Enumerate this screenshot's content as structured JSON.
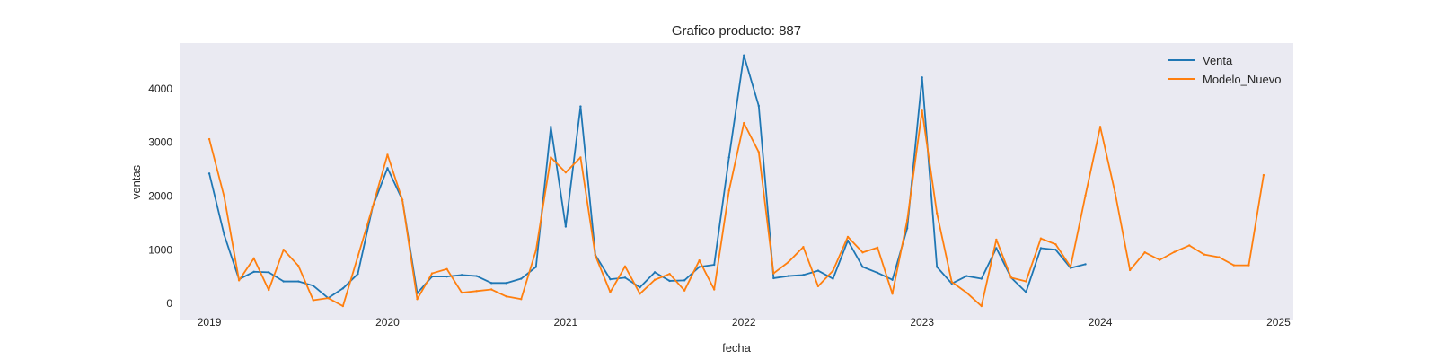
{
  "chart_data": {
    "type": "line",
    "title": "Grafico producto: 887",
    "xlabel": "fecha",
    "ylabel": "ventas",
    "xlim": [
      "2018-11-01",
      "2025-02-01"
    ],
    "ylim": [
      -300,
      4850
    ],
    "xticks": [
      "2019",
      "2020",
      "2021",
      "2022",
      "2023",
      "2024",
      "2025"
    ],
    "yticks": [
      0,
      1000,
      2000,
      3000,
      4000
    ],
    "grid": false,
    "legend": "top-right",
    "colors": {
      "Venta": "#1f77b4",
      "Modelo_Nuevo": "#ff7f0e",
      "background": "#eaeaf2"
    },
    "series": [
      {
        "name": "Venta",
        "x": [
          "2019-01",
          "2019-02",
          "2019-03",
          "2019-04",
          "2019-05",
          "2019-06",
          "2019-07",
          "2019-08",
          "2019-09",
          "2019-10",
          "2019-11",
          "2019-12",
          "2020-01",
          "2020-02",
          "2020-03",
          "2020-04",
          "2020-05",
          "2020-06",
          "2020-07",
          "2020-08",
          "2020-09",
          "2020-10",
          "2020-11",
          "2020-12",
          "2021-01",
          "2021-02",
          "2021-03",
          "2021-04",
          "2021-05",
          "2021-06",
          "2021-07",
          "2021-08",
          "2021-09",
          "2021-10",
          "2021-11",
          "2021-12",
          "2022-01",
          "2022-02",
          "2022-03",
          "2022-04",
          "2022-05",
          "2022-06",
          "2022-07",
          "2022-08",
          "2022-09",
          "2022-10",
          "2022-11",
          "2022-12",
          "2023-01",
          "2023-02",
          "2023-03",
          "2023-04",
          "2023-05",
          "2023-06",
          "2023-07",
          "2023-08",
          "2023-09",
          "2023-10",
          "2023-11",
          "2023-12"
        ],
        "values": [
          2420,
          1280,
          450,
          590,
          580,
          410,
          410,
          330,
          100,
          280,
          550,
          1800,
          2520,
          1930,
          190,
          500,
          500,
          530,
          510,
          380,
          380,
          460,
          680,
          3290,
          1430,
          3670,
          900,
          450,
          480,
          300,
          580,
          420,
          430,
          680,
          720,
          2720,
          4620,
          3680,
          470,
          510,
          530,
          610,
          460,
          1170,
          680,
          570,
          440,
          1400,
          4210,
          680,
          370,
          510,
          460,
          1030,
          480,
          210,
          1030,
          1000,
          660,
          730
        ]
      },
      {
        "name": "Modelo_Nuevo",
        "x": [
          "2019-01",
          "2019-02",
          "2019-03",
          "2019-04",
          "2019-05",
          "2019-06",
          "2019-07",
          "2019-08",
          "2019-09",
          "2019-10",
          "2019-11",
          "2019-12",
          "2020-01",
          "2020-02",
          "2020-03",
          "2020-04",
          "2020-05",
          "2020-06",
          "2020-07",
          "2020-08",
          "2020-09",
          "2020-10",
          "2020-11",
          "2020-12",
          "2021-01",
          "2021-02",
          "2021-03",
          "2021-04",
          "2021-05",
          "2021-06",
          "2021-07",
          "2021-08",
          "2021-09",
          "2021-10",
          "2021-11",
          "2021-12",
          "2022-01",
          "2022-02",
          "2022-03",
          "2022-04",
          "2022-05",
          "2022-06",
          "2022-07",
          "2022-08",
          "2022-09",
          "2022-10",
          "2022-11",
          "2022-12",
          "2023-01",
          "2023-02",
          "2023-03",
          "2023-04",
          "2023-05",
          "2023-06",
          "2023-07",
          "2023-08",
          "2023-09",
          "2023-10",
          "2023-11",
          "2023-12",
          "2024-01",
          "2024-02",
          "2024-03",
          "2024-04",
          "2024-05",
          "2024-06",
          "2024-07",
          "2024-08",
          "2024-09",
          "2024-10",
          "2024-11",
          "2024-12"
        ],
        "values": [
          3060,
          1990,
          430,
          840,
          250,
          1000,
          700,
          60,
          100,
          -50,
          870,
          1800,
          2770,
          1930,
          80,
          560,
          640,
          200,
          230,
          260,
          130,
          80,
          990,
          2720,
          2440,
          2720,
          890,
          210,
          690,
          180,
          440,
          550,
          240,
          800,
          260,
          2100,
          3360,
          2820,
          560,
          770,
          1050,
          320,
          610,
          1240,
          950,
          1040,
          180,
          1550,
          3590,
          1680,
          400,
          200,
          -50,
          1190,
          480,
          410,
          1210,
          1100,
          680,
          2010,
          3290,
          2060,
          620,
          950,
          810,
          960,
          1080,
          910,
          860,
          710,
          710,
          2390
        ]
      }
    ]
  }
}
